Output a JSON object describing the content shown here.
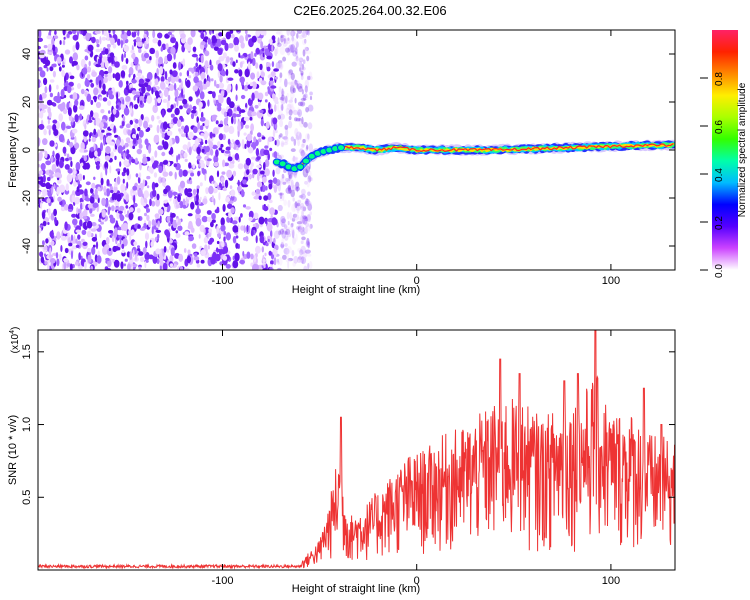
{
  "title": "C2E6.2025.264.00.32.E06",
  "chart_data": [
    {
      "type": "heatmap",
      "xlabel": "Height of straight line (km)",
      "ylabel": "Frequency (Hz)",
      "xlim": [
        -195,
        133
      ],
      "ylim": [
        -50,
        50
      ],
      "xticks": [
        -100,
        0,
        100
      ],
      "yticks": [
        -40,
        -20,
        0,
        20,
        40
      ],
      "noise_region_x": [
        -195,
        -62
      ],
      "ridge": [
        [
          -72,
          -5
        ],
        [
          -68,
          -6
        ],
        [
          -64,
          -8
        ],
        [
          -60,
          -7
        ],
        [
          -55,
          -3
        ],
        [
          -50,
          -1
        ],
        [
          -45,
          0
        ],
        [
          -40,
          1
        ],
        [
          -30,
          1
        ],
        [
          -20,
          0
        ],
        [
          -10,
          1
        ],
        [
          0,
          0
        ],
        [
          20,
          0
        ],
        [
          40,
          0
        ],
        [
          60,
          0.5
        ],
        [
          80,
          1
        ],
        [
          100,
          1.5
        ],
        [
          120,
          2
        ],
        [
          133,
          2
        ]
      ],
      "colorbar": {
        "label": "Normalized spectral amplitude",
        "range": [
          0,
          1
        ],
        "ticks": [
          0.0,
          0.2,
          0.4,
          0.6,
          0.8
        ],
        "tick_labels": [
          "0.0",
          "0.2",
          "0.4",
          "0.6",
          "0.8"
        ],
        "colors": [
          "#ffffff",
          "#cc44ff",
          "#5500ff",
          "#0000ff",
          "#00bbff",
          "#00ffaa",
          "#33ff00",
          "#aaff00",
          "#ffee00",
          "#ff8800",
          "#ff2200",
          "#ff2266"
        ]
      }
    },
    {
      "type": "line",
      "xlabel": "Height of straight line (km)",
      "ylabel": "SNR (10 * v/v)",
      "multiplier": "(x10",
      "multiplier_exp": "4",
      "xlim": [
        -195,
        133
      ],
      "ylim": [
        0,
        1.65
      ],
      "xticks": [
        -100,
        0,
        100
      ],
      "yticks": [
        0.5,
        1.0,
        1.5
      ],
      "ytick_labels": [
        "0.5",
        "1.0",
        "1.5"
      ],
      "color": "#ee3333",
      "envelope": [
        [
          -195,
          0.02
        ],
        [
          -70,
          0.03
        ],
        [
          -60,
          0.05
        ],
        [
          -50,
          0.2
        ],
        [
          -45,
          0.45
        ],
        [
          -40,
          0.8
        ],
        [
          -35,
          0.35
        ],
        [
          -25,
          0.45
        ],
        [
          -15,
          0.6
        ],
        [
          -5,
          0.75
        ],
        [
          5,
          0.8
        ],
        [
          15,
          0.9
        ],
        [
          25,
          0.95
        ],
        [
          35,
          1.05
        ],
        [
          45,
          1.15
        ],
        [
          55,
          1.1
        ],
        [
          65,
          1.0
        ],
        [
          75,
          1.1
        ],
        [
          85,
          1.15
        ],
        [
          92,
          1.3
        ],
        [
          100,
          1.05
        ],
        [
          110,
          1.05
        ],
        [
          120,
          0.9
        ],
        [
          133,
          0.85
        ]
      ],
      "peaks": [
        [
          -39,
          1.05
        ],
        [
          43,
          1.45
        ],
        [
          53,
          1.35
        ],
        [
          76,
          1.3
        ],
        [
          83,
          1.35
        ],
        [
          92,
          1.65
        ],
        [
          117,
          1.25
        ],
        [
          126,
          1.0
        ]
      ]
    }
  ]
}
